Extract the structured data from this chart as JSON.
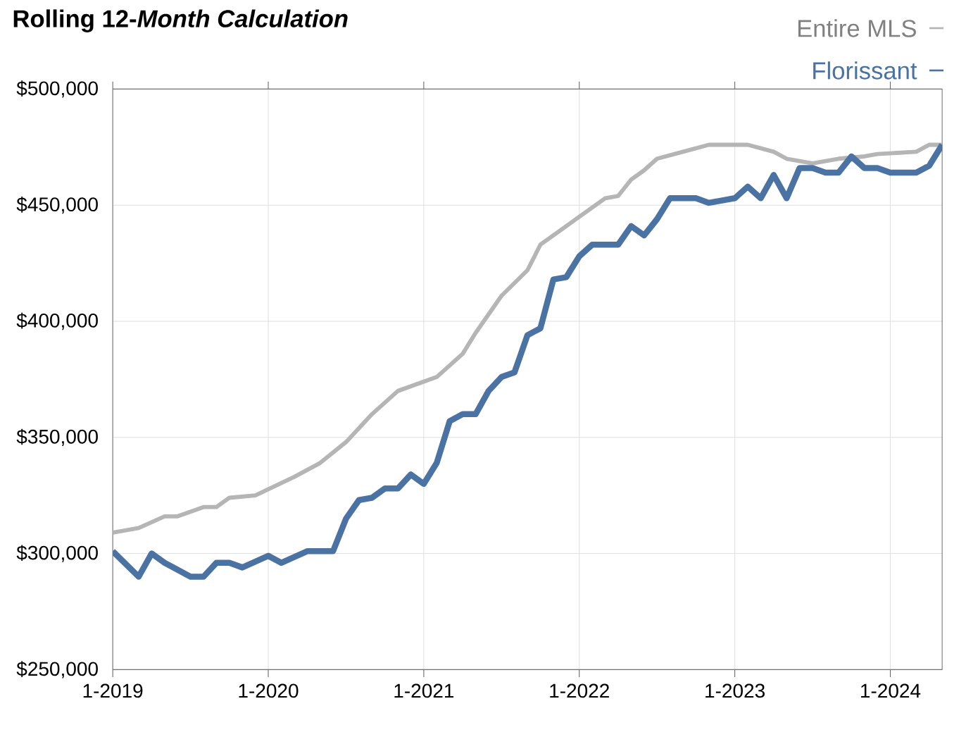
{
  "chart_data": {
    "type": "line",
    "title": "Rolling 12-*Month Calculation*",
    "xlim": [
      "2019-01",
      "2024-05"
    ],
    "ylim": [
      250000,
      500000
    ],
    "xticks": [
      {
        "value": "2019-01",
        "label": "1-2019"
      },
      {
        "value": "2020-01",
        "label": "1-2020"
      },
      {
        "value": "2021-01",
        "label": "1-2021"
      },
      {
        "value": "2022-01",
        "label": "1-2022"
      },
      {
        "value": "2023-01",
        "label": "1-2023"
      },
      {
        "value": "2024-01",
        "label": "1-2024"
      }
    ],
    "yticks": [
      {
        "value": 250000,
        "label": "$250,000"
      },
      {
        "value": 300000,
        "label": "$300,000"
      },
      {
        "value": 350000,
        "label": "$350,000"
      },
      {
        "value": 400000,
        "label": "$400,000"
      },
      {
        "value": 450000,
        "label": "$450,000"
      },
      {
        "value": 500000,
        "label": "$500,000"
      }
    ],
    "grid": true,
    "legend": "top right",
    "marker": "none",
    "line_style": "solid",
    "series": [
      {
        "name": "Entire MLS",
        "color": "#b5b5b5",
        "x": [
          "2019-01",
          "2019-03",
          "2019-05",
          "2019-06",
          "2019-08",
          "2019-09",
          "2019-10",
          "2019-12",
          "2020-03",
          "2020-05",
          "2020-07",
          "2020-09",
          "2020-11",
          "2021-02",
          "2021-04",
          "2021-05",
          "2021-07",
          "2021-09",
          "2021-10",
          "2021-12",
          "2022-01",
          "2022-03",
          "2022-04",
          "2022-05",
          "2022-06",
          "2022-07",
          "2022-09",
          "2022-11",
          "2023-02",
          "2023-04",
          "2023-05",
          "2023-07",
          "2023-09",
          "2023-11",
          "2023-12",
          "2024-03",
          "2024-04",
          "2024-05"
        ],
        "values": [
          309000,
          311000,
          316000,
          316000,
          320000,
          320000,
          324000,
          325000,
          333000,
          339000,
          348000,
          360000,
          370000,
          376000,
          386000,
          395000,
          411000,
          422000,
          433000,
          441000,
          445000,
          453000,
          454000,
          461000,
          465000,
          470000,
          473000,
          476000,
          476000,
          473000,
          470000,
          468000,
          470000,
          471000,
          472000,
          473000,
          476000,
          476000
        ]
      },
      {
        "name": "Florissant",
        "color": "#4a72a3",
        "x": [
          "2019-01",
          "2019-03",
          "2019-04",
          "2019-05",
          "2019-07",
          "2019-08",
          "2019-09",
          "2019-10",
          "2019-11",
          "2020-01",
          "2020-02",
          "2020-04",
          "2020-06",
          "2020-07",
          "2020-08",
          "2020-09",
          "2020-10",
          "2020-11",
          "2020-12",
          "2021-01",
          "2021-02",
          "2021-03",
          "2021-04",
          "2021-05",
          "2021-06",
          "2021-07",
          "2021-08",
          "2021-09",
          "2021-10",
          "2021-11",
          "2021-12",
          "2022-01",
          "2022-02",
          "2022-04",
          "2022-05",
          "2022-06",
          "2022-07",
          "2022-08",
          "2022-10",
          "2022-11",
          "2023-01",
          "2023-02",
          "2023-03",
          "2023-04",
          "2023-05",
          "2023-06",
          "2023-07",
          "2023-08",
          "2023-09",
          "2023-10",
          "2023-11",
          "2023-12",
          "2024-01",
          "2024-03",
          "2024-04",
          "2024-05"
        ],
        "values": [
          301000,
          290000,
          300000,
          296000,
          290000,
          290000,
          296000,
          296000,
          294000,
          299000,
          296000,
          301000,
          301000,
          315000,
          323000,
          324000,
          328000,
          328000,
          334000,
          330000,
          339000,
          357000,
          360000,
          360000,
          370000,
          376000,
          378000,
          394000,
          397000,
          418000,
          419000,
          428000,
          433000,
          433000,
          441000,
          437000,
          444000,
          453000,
          453000,
          451000,
          453000,
          458000,
          453000,
          463000,
          453000,
          466000,
          466000,
          464000,
          464000,
          471000,
          466000,
          466000,
          464000,
          464000,
          467000,
          476000
        ]
      }
    ]
  }
}
